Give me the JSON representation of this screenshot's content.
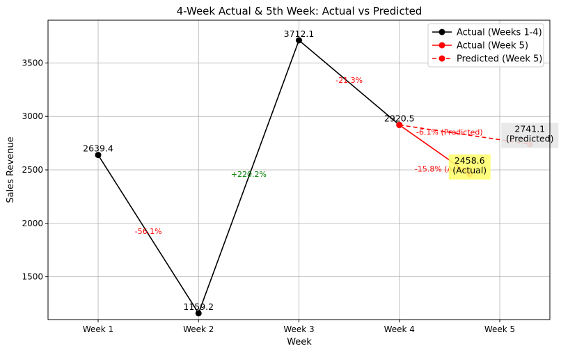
{
  "chart_data": {
    "type": "line",
    "title": "4-Week Actual & 5th Week: Actual vs Predicted",
    "xlabel": "Week",
    "ylabel": "Sales Revenue",
    "categories": [
      "Week 1",
      "Week 2",
      "Week 3",
      "Week 4",
      "Week 5"
    ],
    "ylim": [
      1100,
      3900
    ],
    "yticks": [
      1500,
      2000,
      2500,
      3000,
      3500
    ],
    "grid": true,
    "legend_position": "top-right",
    "series": [
      {
        "name": "Actual (Weeks 1-4)",
        "color": "#000000",
        "style": "solid",
        "x": [
          0,
          1,
          2,
          3
        ],
        "values": [
          2639.4,
          1159.2,
          3712.1,
          2920.5
        ],
        "labels": [
          "2639.4",
          "1159.2",
          "3712.1",
          "2920.5"
        ]
      },
      {
        "name": "Actual (Week 5)",
        "color": "#ff0000",
        "style": "solid",
        "x": [
          3,
          3.7
        ],
        "values": [
          2920.5,
          2458.6
        ]
      },
      {
        "name": "Predicted (Week 5)",
        "color": "#ff0000",
        "style": "dashed",
        "x": [
          3,
          4.3
        ],
        "values": [
          2920.5,
          2741.1
        ]
      }
    ],
    "pct_changes": [
      {
        "text": "-56.1%",
        "x": 0.5,
        "y": 1900,
        "color": "#ff0000"
      },
      {
        "text": "+220.2%",
        "x": 1.5,
        "y": 2435,
        "color": "#008000"
      },
      {
        "text": "-21.3%",
        "x": 2.5,
        "y": 3315,
        "color": "#ff0000"
      },
      {
        "text": "-6.1% (Predicted)",
        "x": 3.5,
        "y": 2830,
        "color": "#ff0000"
      },
      {
        "text": "-15.8% (Actual)",
        "x": 3.45,
        "y": 2485,
        "color": "#ff0000"
      }
    ],
    "boxed_labels": [
      {
        "lines": [
          "2458.6",
          "(Actual)"
        ],
        "x": 3.7,
        "y": 2560,
        "bg": "#ffff66",
        "text_color": "#ff0000"
      },
      {
        "lines": [
          "2741.1",
          "(Predicted)"
        ],
        "x": 4.3,
        "y": 2855,
        "bg": "#e5e5e5",
        "text_color": "#ff0000"
      }
    ]
  }
}
